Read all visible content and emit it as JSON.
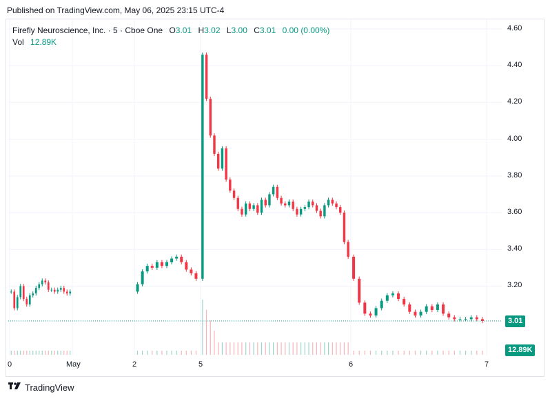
{
  "header": {
    "published": "Published on TradingView.com, May 06, 2025 23:15 UTC-4"
  },
  "legend": {
    "symbol": "Firefly Neuroscience, Inc. · 5 · Cboe One",
    "open_label": "O",
    "open": "3.01",
    "high_label": "H",
    "high": "3.02",
    "low_label": "L",
    "low": "3.00",
    "close_label": "C",
    "close": "3.01",
    "change": "0.00 (0.00%)",
    "vol_label": "Vol",
    "vol": "12.89K"
  },
  "badges": {
    "price": "3.01",
    "volume": "12.89K"
  },
  "footer": {
    "brand": "TradingView"
  },
  "colors": {
    "up": "#089981",
    "down": "#f23645",
    "grid": "#f0f3fa",
    "volume_up": "#9fd5c9",
    "volume_down": "#f8b4b8"
  },
  "chart_data": {
    "type": "candlestick",
    "interval": "5",
    "exchange": "Cboe One",
    "y_ticks": [
      "3.20",
      "3.40",
      "3.60",
      "3.80",
      "4.00",
      "4.20",
      "4.40",
      "4.60"
    ],
    "ylim": [
      2.8,
      4.66
    ],
    "x_ticks": [
      "0",
      "May",
      "2",
      "5",
      "6",
      "7"
    ],
    "last_price": 3.01,
    "last_volume": "12.89K",
    "series": [
      {
        "name": "May 1",
        "values": [
          3.17,
          3.08,
          3.14,
          3.2,
          3.13,
          3.1,
          3.15,
          3.16,
          3.19,
          3.21,
          3.23,
          3.22,
          3.18,
          3.18,
          3.17,
          3.18,
          3.19,
          3.17,
          3.16,
          3.17
        ]
      },
      {
        "name": "May 2",
        "values": [
          3.21,
          3.28,
          3.31,
          3.3,
          3.33,
          3.31,
          3.33,
          3.35,
          3.36,
          3.33,
          3.29,
          3.27,
          3.24
        ]
      },
      {
        "name": "May 5",
        "values": [
          4.46,
          4.22,
          4.02,
          3.92,
          3.84,
          3.95,
          3.78,
          3.72,
          3.68,
          3.62,
          3.59,
          3.65,
          3.62,
          3.64,
          3.6,
          3.67,
          3.64,
          3.7,
          3.74,
          3.68,
          3.65,
          3.64,
          3.66,
          3.62,
          3.59,
          3.62,
          3.63,
          3.66,
          3.64,
          3.61,
          3.58,
          3.64,
          3.67,
          3.65,
          3.63,
          3.6,
          3.44,
          3.36
        ]
      },
      {
        "name": "May 6",
        "values": [
          3.24,
          3.11,
          3.05,
          3.04,
          3.08,
          3.12,
          3.15,
          3.16,
          3.13,
          3.1,
          3.06,
          3.04,
          3.06,
          3.09,
          3.07,
          3.1,
          3.05,
          3.03,
          3.02,
          3.02,
          3.02,
          3.03,
          3.02,
          3.01
        ]
      }
    ]
  }
}
